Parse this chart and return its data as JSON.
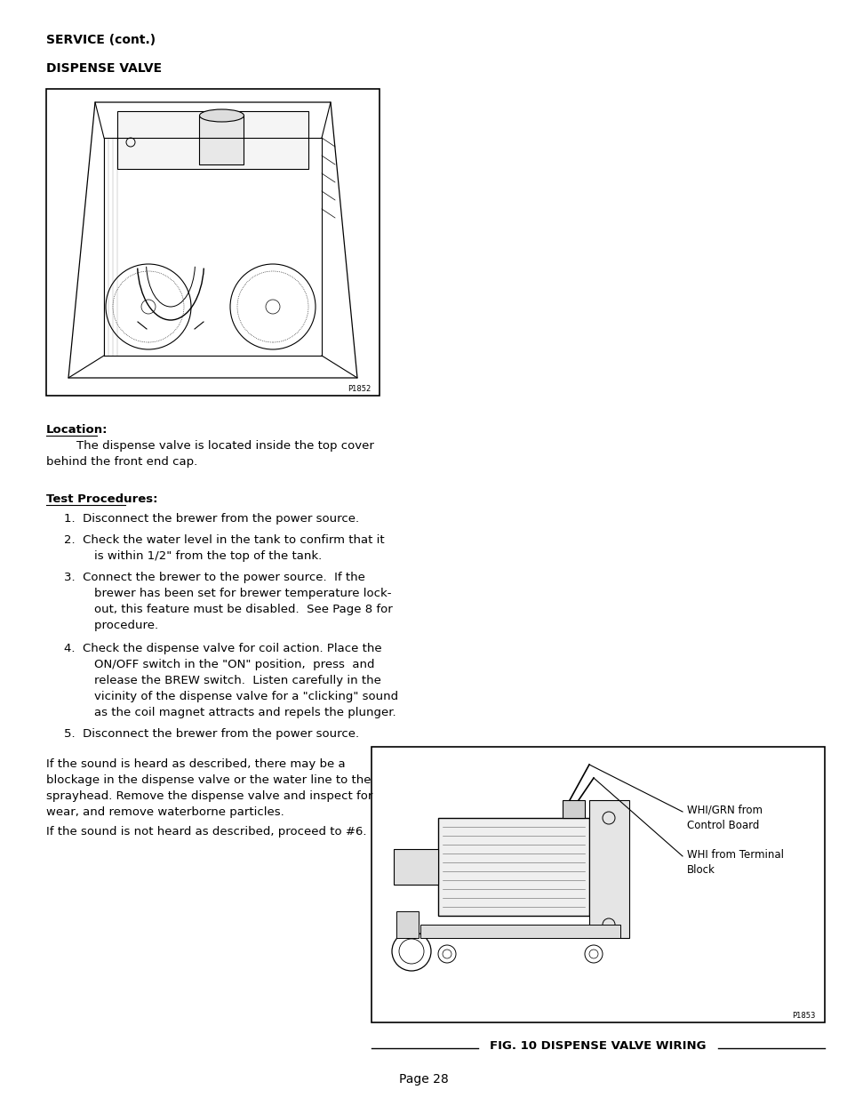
{
  "page_title": "SERVICE (cont.)",
  "section_title": "DISPENSE VALVE",
  "location_heading": "Location:",
  "location_text": "        The dispense valve is located inside the top cover\nbehind the front end cap.",
  "test_heading": "Test Procedures:",
  "para1_line1": "If the sound is heard as described, there may be a",
  "para1_line2": "blockage in the dispense valve or the water line to the",
  "para1_line3": "sprayhead. Remove the dispense valve and inspect for",
  "para1_line4": "wear, and remove waterborne particles.",
  "para2": "If the sound is not heard as described, proceed to #6.",
  "fig_caption": "FIG. 10 DISPENSE VALVE WIRING",
  "fig_label_1": "WHI/GRN from\nControl Board",
  "fig_label_2": "WHI from Terminal\nBlock",
  "code1": "P1852",
  "code2": "P1853",
  "page_num": "Page 28",
  "bg_color": "#ffffff",
  "text_color": "#000000"
}
